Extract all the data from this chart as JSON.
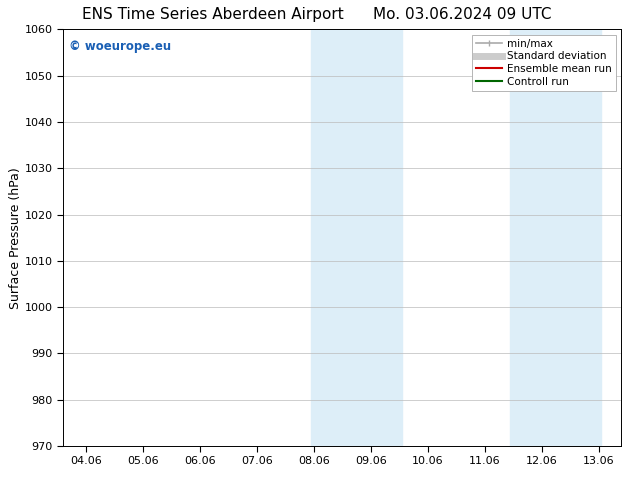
{
  "title_left": "ENS Time Series Aberdeen Airport",
  "title_right": "Mo. 03.06.2024 09 UTC",
  "ylabel": "Surface Pressure (hPa)",
  "ylim": [
    970,
    1060
  ],
  "yticks": [
    970,
    980,
    990,
    1000,
    1010,
    1020,
    1030,
    1040,
    1050,
    1060
  ],
  "xtick_positions": [
    4,
    5,
    6,
    7,
    8,
    9,
    10,
    11,
    12,
    13
  ],
  "xtick_labels": [
    "04.06",
    "05.06",
    "06.06",
    "07.06",
    "08.06",
    "09.06",
    "10.06",
    "11.06",
    "12.06",
    "13.06"
  ],
  "xlim": [
    3.6,
    13.4
  ],
  "shaded_bands": [
    {
      "x_start": 7.95,
      "x_end": 9.55
    },
    {
      "x_start": 11.45,
      "x_end": 13.05
    }
  ],
  "shaded_color": "#ddeef8",
  "watermark": "© woeurope.eu",
  "watermark_color": "#1a5fb4",
  "legend_items": [
    {
      "label": "min/max",
      "color": "#aaaaaa",
      "lw": 1.2,
      "style": "solid",
      "type": "line_tick"
    },
    {
      "label": "Standard deviation",
      "color": "#cccccc",
      "lw": 5,
      "style": "solid",
      "type": "bar"
    },
    {
      "label": "Ensemble mean run",
      "color": "#cc0000",
      "lw": 1.5,
      "style": "solid",
      "type": "line"
    },
    {
      "label": "Controll run",
      "color": "#006600",
      "lw": 1.5,
      "style": "solid",
      "type": "line"
    }
  ],
  "background_color": "#ffffff",
  "grid_color": "#bbbbbb",
  "title_fontsize": 11,
  "ylabel_fontsize": 9,
  "tick_fontsize": 8,
  "legend_fontsize": 7.5,
  "watermark_fontsize": 8.5
}
